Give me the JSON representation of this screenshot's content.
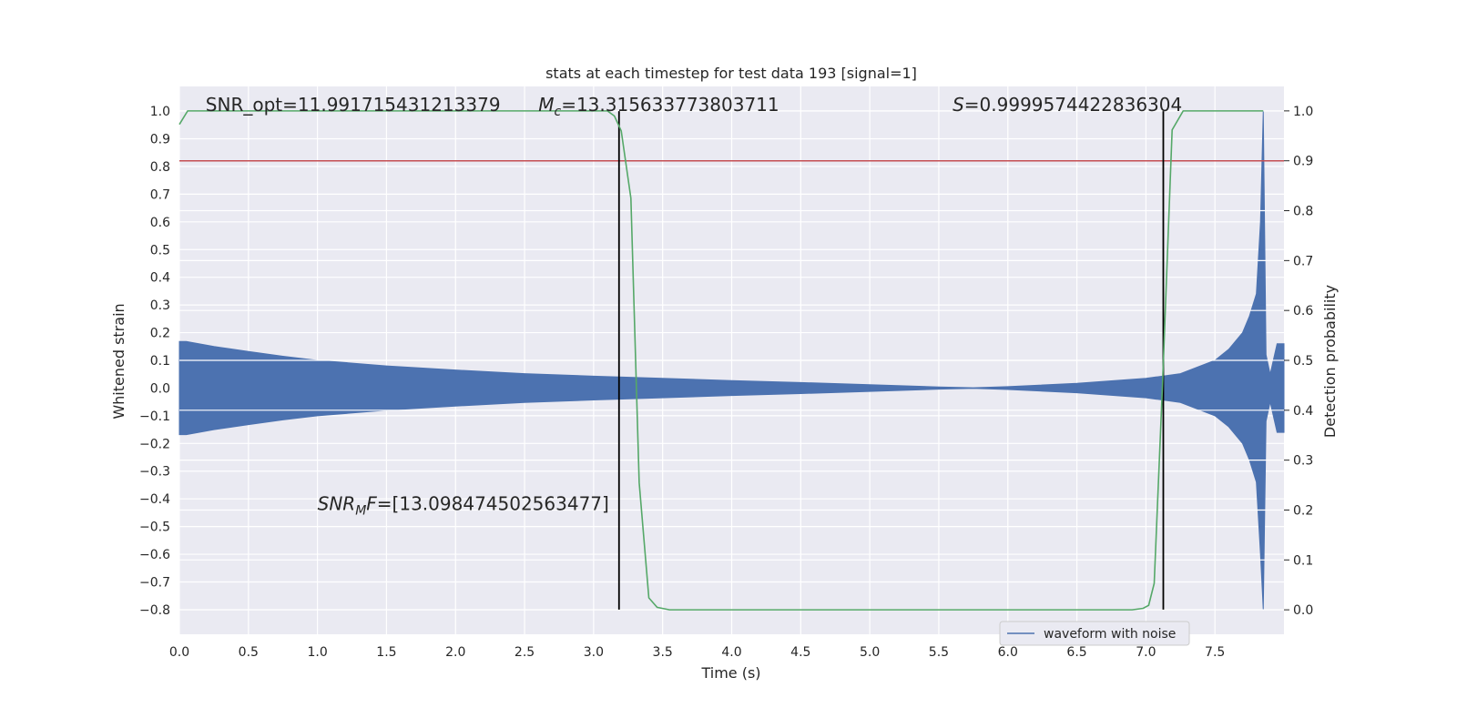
{
  "chart_data": {
    "type": "line",
    "title": "stats at each timestep for test data 193 [signal=1]",
    "x_label": "Time (s)",
    "y_label": "Whitened strain",
    "y2_label": "Detection probability",
    "xlim": [
      0,
      8.0
    ],
    "ylim": [
      -0.889,
      1.089
    ],
    "y2lim": [
      -0.049,
      1.049
    ],
    "xticks": [
      {
        "value": 0,
        "label": "0.0"
      },
      {
        "value": 0.5,
        "label": "0.5"
      },
      {
        "value": 1,
        "label": "1.0"
      },
      {
        "value": 1.5,
        "label": "1.5"
      },
      {
        "value": 2,
        "label": "2.0"
      },
      {
        "value": 2.5,
        "label": "2.5"
      },
      {
        "value": 3,
        "label": "3.0"
      },
      {
        "value": 3.5,
        "label": "3.5"
      },
      {
        "value": 4,
        "label": "4.0"
      },
      {
        "value": 4.5,
        "label": "4.5"
      },
      {
        "value": 5,
        "label": "5.0"
      },
      {
        "value": 5.5,
        "label": "5.5"
      },
      {
        "value": 6,
        "label": "6.0"
      },
      {
        "value": 6.5,
        "label": "6.5"
      },
      {
        "value": 7,
        "label": "7.0"
      },
      {
        "value": 7.5,
        "label": "7.5"
      }
    ],
    "yticks": [
      {
        "value": -0.8,
        "label": "−0.8"
      },
      {
        "value": -0.7,
        "label": "−0.7"
      },
      {
        "value": -0.6,
        "label": "−0.6"
      },
      {
        "value": -0.5,
        "label": "−0.5"
      },
      {
        "value": -0.4,
        "label": "−0.4"
      },
      {
        "value": -0.3,
        "label": "−0.3"
      },
      {
        "value": -0.2,
        "label": "−0.2"
      },
      {
        "value": -0.1,
        "label": "−0.1"
      },
      {
        "value": 0,
        "label": "0.0"
      },
      {
        "value": 0.1,
        "label": "0.1"
      },
      {
        "value": 0.2,
        "label": "0.2"
      },
      {
        "value": 0.3,
        "label": "0.3"
      },
      {
        "value": 0.4,
        "label": "0.4"
      },
      {
        "value": 0.5,
        "label": "0.5"
      },
      {
        "value": 0.6,
        "label": "0.6"
      },
      {
        "value": 0.7,
        "label": "0.7"
      },
      {
        "value": 0.8,
        "label": "0.8"
      },
      {
        "value": 0.9,
        "label": "0.9"
      },
      {
        "value": 1,
        "label": "1.0"
      }
    ],
    "y2ticks": [
      {
        "value": 0,
        "label": "0.0"
      },
      {
        "value": 0.1,
        "label": "0.1"
      },
      {
        "value": 0.2,
        "label": "0.2"
      },
      {
        "value": 0.3,
        "label": "0.3"
      },
      {
        "value": 0.4,
        "label": "0.4"
      },
      {
        "value": 0.5,
        "label": "0.5"
      },
      {
        "value": 0.6,
        "label": "0.6"
      },
      {
        "value": 0.7,
        "label": "0.7"
      },
      {
        "value": 0.8,
        "label": "0.8"
      },
      {
        "value": 0.9,
        "label": "0.9"
      },
      {
        "value": 1,
        "label": "1.0"
      }
    ],
    "grid": true,
    "legend_loc": "lower right",
    "series": [
      {
        "name": "waveform with noise",
        "color": "#4c72b0",
        "type": "band",
        "x": [
          0,
          0.05,
          0.25,
          0.5,
          0.75,
          1.0,
          1.5,
          2.0,
          2.5,
          3.0,
          3.5,
          4.0,
          4.5,
          5.0,
          5.5,
          5.75,
          6.0,
          6.5,
          7.0,
          7.25,
          7.5,
          7.6,
          7.7,
          7.75,
          7.8,
          7.83,
          7.85,
          7.87,
          7.9,
          7.95,
          8.0
        ],
        "upper": [
          0.168,
          0.168,
          0.15,
          0.132,
          0.115,
          0.1,
          0.08,
          0.065,
          0.052,
          0.043,
          0.035,
          0.027,
          0.02,
          0.012,
          0.004,
          0.001,
          0.005,
          0.017,
          0.035,
          0.052,
          0.1,
          0.14,
          0.2,
          0.26,
          0.34,
          0.6,
          1.0,
          0.12,
          0.05,
          0.16,
          0.16
        ],
        "lower": [
          -0.168,
          -0.168,
          -0.15,
          -0.132,
          -0.115,
          -0.1,
          -0.08,
          -0.065,
          -0.052,
          -0.043,
          -0.035,
          -0.027,
          -0.02,
          -0.012,
          -0.004,
          -0.001,
          -0.005,
          -0.017,
          -0.035,
          -0.052,
          -0.1,
          -0.14,
          -0.2,
          -0.26,
          -0.34,
          -0.6,
          -0.8,
          -0.12,
          -0.05,
          -0.16,
          -0.16
        ]
      },
      {
        "color": "#55a868",
        "axis": "y2",
        "x": [
          0,
          0.06,
          3.1,
          3.15,
          3.2,
          3.27,
          3.33,
          3.4,
          3.46,
          3.55,
          6.9,
          6.98,
          7.02,
          7.06,
          7.12,
          7.19,
          7.27,
          7.85
        ],
        "values": [
          0.973,
          1.0,
          1.0,
          0.99,
          0.96,
          0.825,
          0.255,
          0.024,
          0.005,
          0.0,
          0.0,
          0.003,
          0.009,
          0.053,
          0.45,
          0.962,
          1.0,
          1.0
        ]
      }
    ],
    "hlines": [
      {
        "y": 0.9,
        "axis": "y2",
        "color": "#c44e52"
      }
    ],
    "vlines": [
      {
        "x": 3.184,
        "ymin": -0.8,
        "ymax": 1.0,
        "color": "#000000"
      },
      {
        "x": 7.126,
        "ymin": -0.8,
        "ymax": 1.0,
        "color": "#000000"
      }
    ],
    "annotations": [
      {
        "x": 0.19,
        "y": 1.0,
        "parts": [
          {
            "text": "SNR_opt=11.991715431213379"
          }
        ]
      },
      {
        "x": 2.6,
        "y": 1.0,
        "parts": [
          {
            "text": "M",
            "style": "italic"
          },
          {
            "text": "c",
            "style": "italic-sub"
          },
          {
            "text": "=13.315633773803711"
          }
        ]
      },
      {
        "x": 5.6,
        "y": 1.0,
        "parts": [
          {
            "text": "S",
            "style": "italic"
          },
          {
            "text": "=0.9999574422836304"
          }
        ]
      },
      {
        "x": 1.0,
        "y": -0.44,
        "parts": [
          {
            "text": "SNR",
            "style": "italic"
          },
          {
            "text": "M",
            "style": "italic-sub"
          },
          {
            "text": "F",
            "style": "italic"
          },
          {
            "text": "=[13.098474502563477]"
          }
        ]
      }
    ]
  }
}
